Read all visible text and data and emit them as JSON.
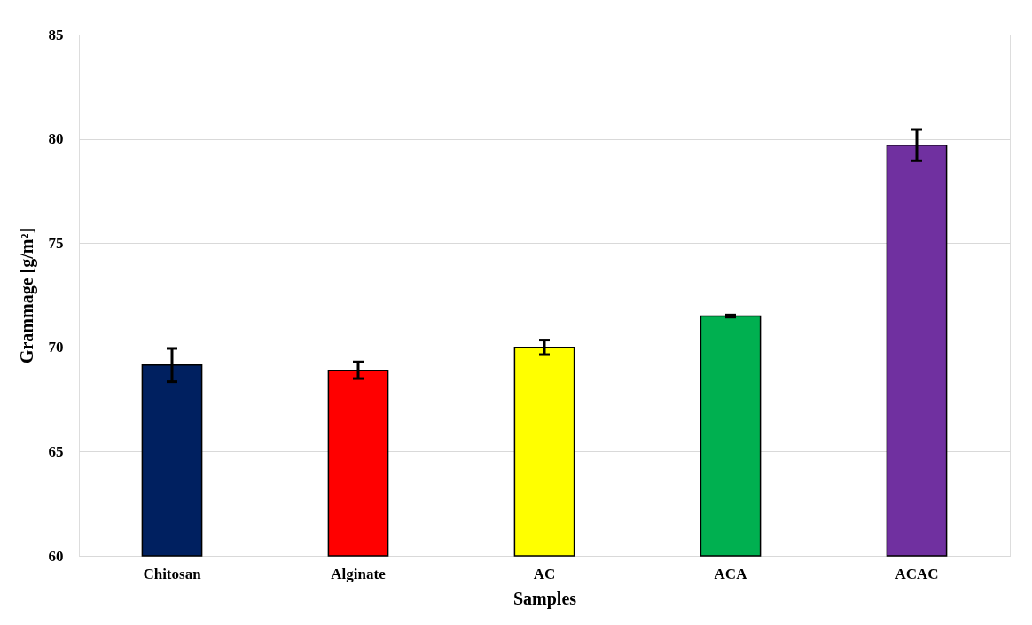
{
  "chart_data": {
    "type": "bar",
    "xlabel": "Samples",
    "ylabel": "Grammage [g/m²]",
    "categories": [
      "Chitosan",
      "Alginate",
      "AC",
      "ACA",
      "ACAC"
    ],
    "values": [
      69.15,
      68.9,
      70.0,
      71.5,
      79.7
    ],
    "colors": [
      "#002060",
      "#ff0000",
      "#ffff00",
      "#00b050",
      "#7030a0"
    ],
    "errors": [
      0.8,
      0.4,
      0.35,
      0.05,
      0.75
    ],
    "ylim": [
      60,
      85
    ],
    "yticks": [
      60,
      65,
      70,
      75,
      80,
      85
    ],
    "grid": "y"
  }
}
